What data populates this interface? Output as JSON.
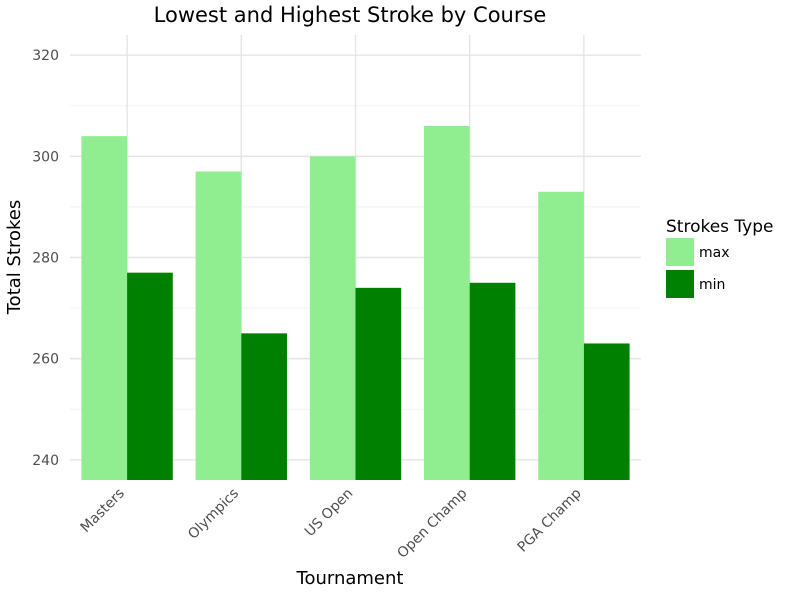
{
  "chart_data": {
    "type": "bar",
    "title": "Lowest and Highest Stroke by Course",
    "xlabel": "Tournament",
    "ylabel": "Total Strokes",
    "categories": [
      "Masters",
      "Olympics",
      "US Open",
      "Open Champ",
      "PGA Champ"
    ],
    "series": [
      {
        "name": "max",
        "color": "#90ee90",
        "values": [
          304,
          297,
          300,
          306,
          293
        ]
      },
      {
        "name": "min",
        "color": "#008000",
        "values": [
          277,
          265,
          274,
          275,
          263
        ]
      }
    ],
    "ylim": [
      236,
      324
    ],
    "yticks": [
      240,
      260,
      280,
      300,
      320
    ],
    "grid": true,
    "legend": {
      "title": "Strokes Type",
      "position": "right"
    }
  }
}
